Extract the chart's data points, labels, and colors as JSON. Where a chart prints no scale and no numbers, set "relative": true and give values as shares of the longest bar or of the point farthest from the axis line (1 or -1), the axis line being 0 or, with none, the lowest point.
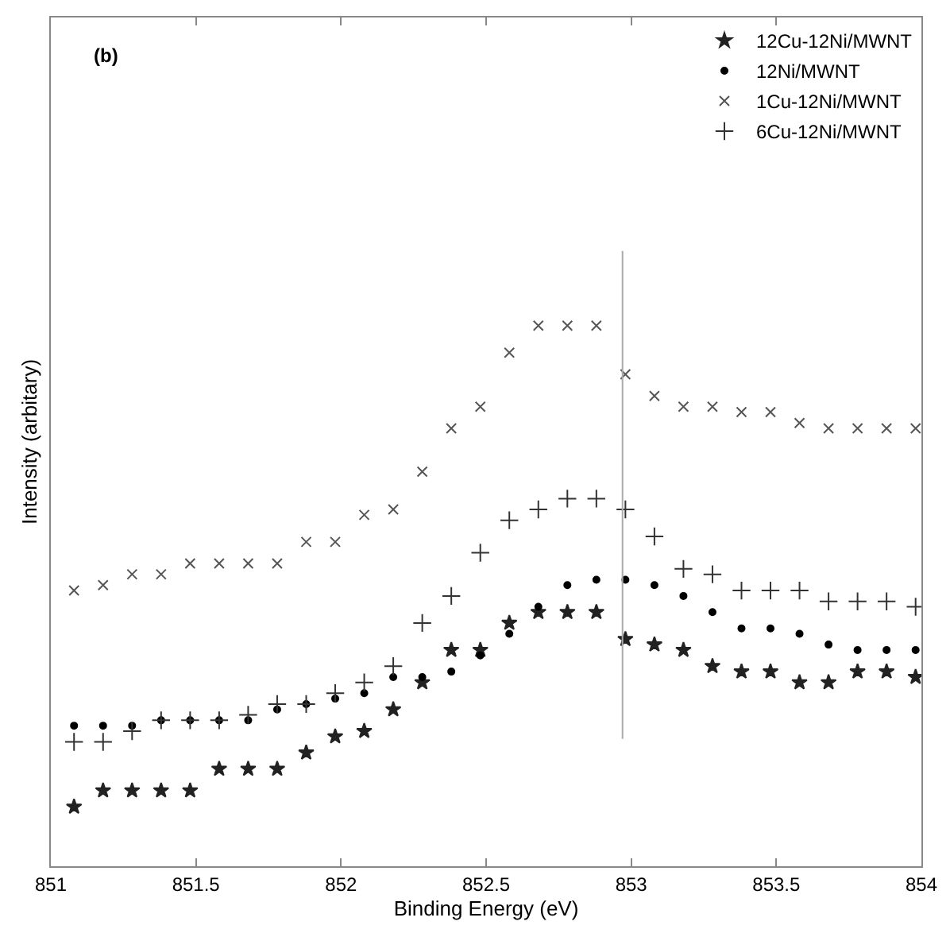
{
  "chart_data": {
    "type": "scatter",
    "relative": true,
    "xlabel": "Binding Energy (eV)",
    "ylabel": "Intensity (arbitary)",
    "annotations": [
      "(b)"
    ],
    "x": [
      851.08,
      851.18,
      851.28,
      851.38,
      851.48,
      851.58,
      851.68,
      851.78,
      851.88,
      851.98,
      852.08,
      852.18,
      852.28,
      852.38,
      852.48,
      852.58,
      852.68,
      852.78,
      852.88,
      852.98,
      853.08,
      853.18,
      853.28,
      853.38,
      853.48,
      853.58,
      853.68,
      853.78,
      853.88,
      853.98
    ],
    "xlim": [
      851,
      854
    ],
    "xticks": [
      851,
      851.5,
      852,
      852.5,
      853,
      853.5,
      854
    ],
    "tick_labels": "x",
    "legend": "top right",
    "series": [
      {
        "name": "12Cu-12Ni/MWNT",
        "color": "#222222",
        "marker": "star",
        "values": [
          0.11,
          0.14,
          0.14,
          0.14,
          0.14,
          0.18,
          0.18,
          0.18,
          0.21,
          0.24,
          0.25,
          0.29,
          0.34,
          0.4,
          0.4,
          0.45,
          0.47,
          0.47,
          0.47,
          0.42,
          0.41,
          0.4,
          0.37,
          0.36,
          0.36,
          0.34,
          0.34,
          0.36,
          0.36,
          0.35
        ]
      },
      {
        "name": "12Ni/MWNT",
        "color": "#000000",
        "marker": "circle",
        "values": [
          0.26,
          0.26,
          0.26,
          0.27,
          0.27,
          0.27,
          0.27,
          0.29,
          0.3,
          0.31,
          0.32,
          0.35,
          0.35,
          0.36,
          0.39,
          0.43,
          0.48,
          0.52,
          0.53,
          0.53,
          0.52,
          0.5,
          0.47,
          0.44,
          0.44,
          0.43,
          0.41,
          0.4,
          0.4,
          0.4
        ]
      },
      {
        "name": "1Cu-12Ni/MWNT",
        "color": "#555555",
        "marker": "x",
        "values": [
          0.51,
          0.52,
          0.54,
          0.54,
          0.56,
          0.56,
          0.56,
          0.56,
          0.6,
          0.6,
          0.65,
          0.66,
          0.73,
          0.81,
          0.85,
          0.95,
          1,
          1,
          1,
          0.91,
          0.87,
          0.85,
          0.85,
          0.84,
          0.84,
          0.82,
          0.81,
          0.81,
          0.81,
          0.81
        ]
      },
      {
        "name": "6Cu-12Ni/MWNT",
        "color": "#333333",
        "marker": "cross",
        "values": [
          0.23,
          0.23,
          0.25,
          0.27,
          0.27,
          0.27,
          0.28,
          0.3,
          0.3,
          0.32,
          0.34,
          0.37,
          0.45,
          0.5,
          0.58,
          0.64,
          0.66,
          0.68,
          0.68,
          0.66,
          0.61,
          0.55,
          0.54,
          0.51,
          0.51,
          0.51,
          0.49,
          0.49,
          0.49,
          0.48
        ]
      }
    ],
    "ref_lines": [
      {
        "axis": "x",
        "value": 852.97,
        "color": "#aaaaaa"
      }
    ]
  }
}
